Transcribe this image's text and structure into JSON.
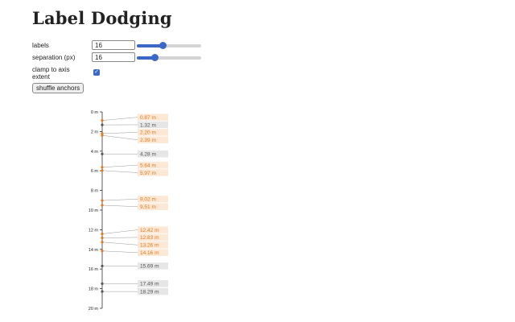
{
  "title": "Label Dodging",
  "controls": {
    "labels": {
      "label": "labels",
      "value": "16",
      "slider_fraction": 0.4
    },
    "separation": {
      "label": "separation (px)",
      "value": "16",
      "slider_fraction": 0.28
    },
    "clamp": {
      "label": "clamp to axis extent",
      "checked": true
    },
    "shuffle_button": "shuffle anchors"
  },
  "chart_data": {
    "type": "scatter",
    "axis": {
      "domain": [
        0,
        20
      ],
      "unit": "m",
      "ticks": [
        0,
        2,
        4,
        6,
        8,
        10,
        12,
        14,
        16,
        18,
        20
      ]
    },
    "tick_labels": [
      "0 m",
      "2 m",
      "4 m",
      "6 m",
      "8 m",
      "10 m",
      "12 m",
      "14 m",
      "16 m",
      "18 m",
      "20 m"
    ],
    "colors": {
      "highlight": "#e8761a",
      "highlight_bg": "#fde8d5",
      "normal": "#555555",
      "normal_bg": "#e6e6e6"
    },
    "anchors": [
      {
        "value": 0.87,
        "text": "0.87 m",
        "highlight": true
      },
      {
        "value": 1.32,
        "text": "1.32 m",
        "highlight": false
      },
      {
        "value": 2.2,
        "text": "2.20 m",
        "highlight": true
      },
      {
        "value": 2.39,
        "text": "2.39 m",
        "highlight": true
      },
      {
        "value": 4.28,
        "text": "4.28 m",
        "highlight": false
      },
      {
        "value": 5.64,
        "text": "5.64 m",
        "highlight": true
      },
      {
        "value": 5.97,
        "text": "5.97 m",
        "highlight": true
      },
      {
        "value": 9.02,
        "text": "9.02 m",
        "highlight": true
      },
      {
        "value": 9.51,
        "text": "9.51 m",
        "highlight": true
      },
      {
        "value": 12.42,
        "text": "12.42 m",
        "highlight": true
      },
      {
        "value": 12.83,
        "text": "12.83 m",
        "highlight": true
      },
      {
        "value": 13.26,
        "text": "13.26 m",
        "highlight": true
      },
      {
        "value": 14.16,
        "text": "14.16 m",
        "highlight": true
      },
      {
        "value": 15.69,
        "text": "15.69 m",
        "highlight": false
      },
      {
        "value": 17.49,
        "text": "17.49 m",
        "highlight": false
      },
      {
        "value": 18.29,
        "text": "18.29 m",
        "highlight": false
      }
    ]
  }
}
